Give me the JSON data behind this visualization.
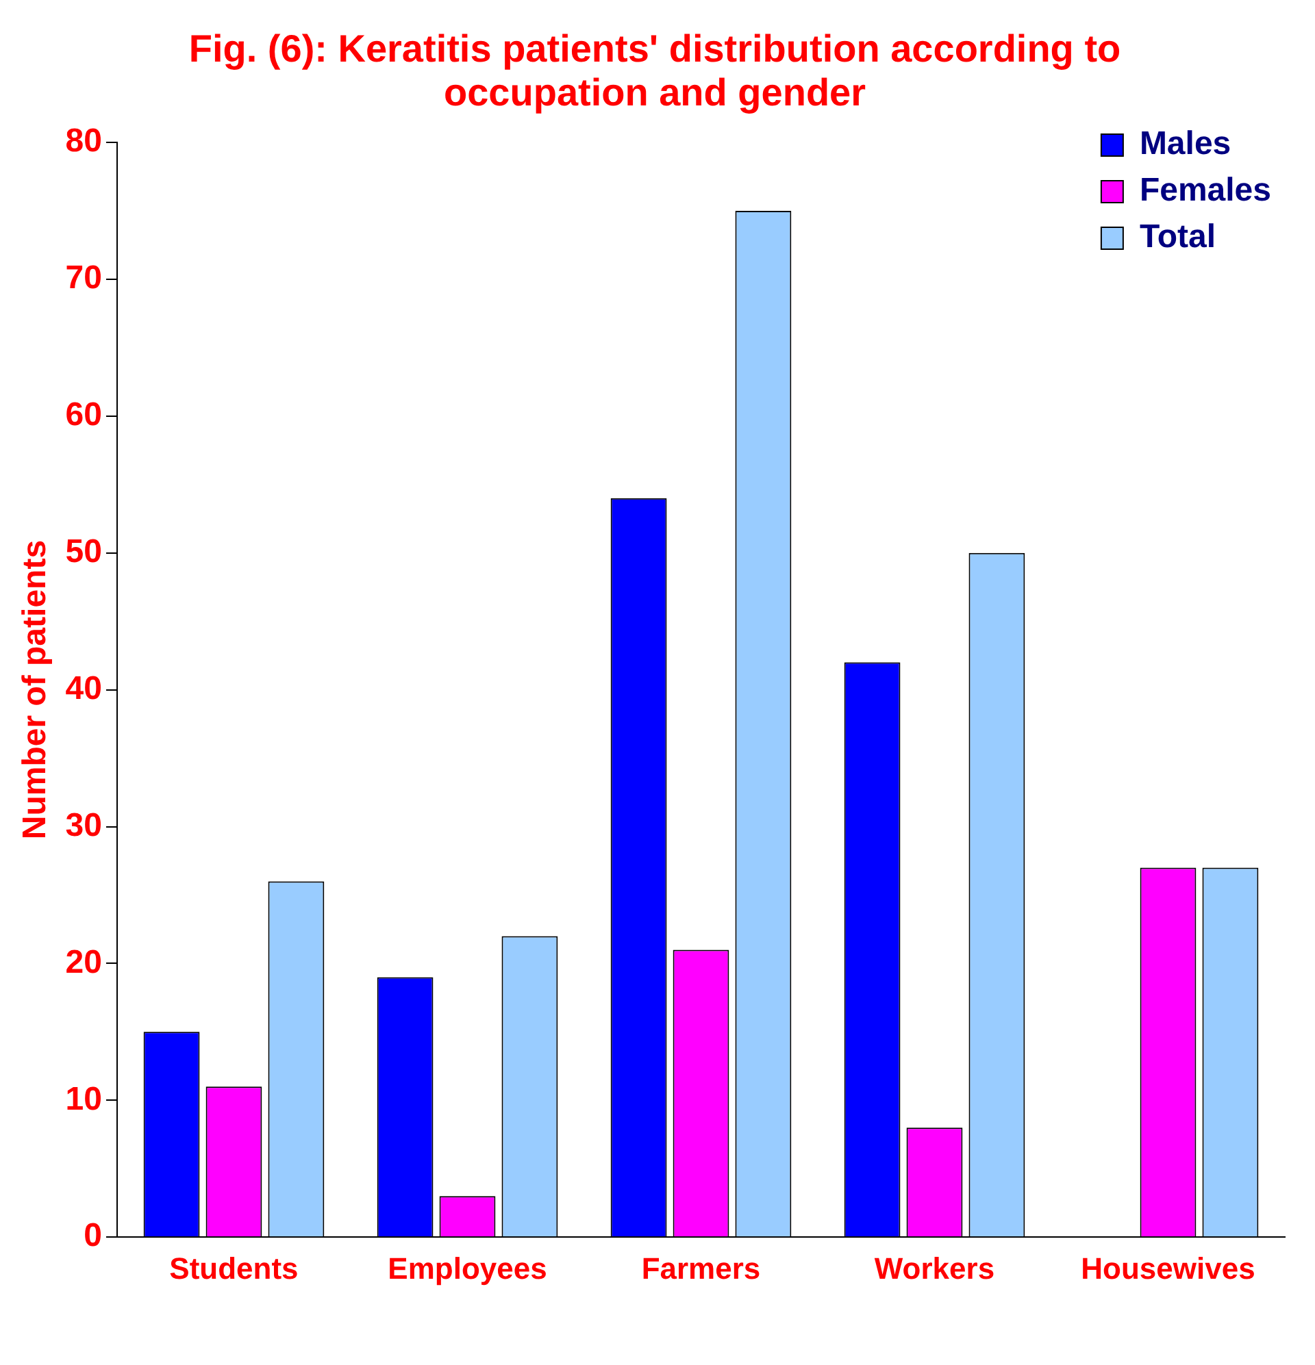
{
  "chart_data": {
    "type": "bar",
    "title": "Fig. (6): Keratitis patients' distribution according to occupation and gender",
    "ylabel": "Number of patients",
    "categories": [
      "Students",
      "Employees",
      "Farmers",
      "Workers",
      "Housewives"
    ],
    "series": [
      {
        "name": "Males",
        "color": "#0000ff",
        "values": [
          15,
          19,
          54,
          42,
          0
        ]
      },
      {
        "name": "Females",
        "color": "#ff00ff",
        "values": [
          11,
          3,
          21,
          8,
          27
        ]
      },
      {
        "name": "Total",
        "color": "#99ccff",
        "values": [
          26,
          22,
          75,
          50,
          27
        ]
      }
    ],
    "ylim": [
      0,
      80
    ],
    "yticks": [
      0,
      10,
      20,
      30,
      40,
      50,
      60,
      70,
      80
    ],
    "grid": false,
    "legend": "top right"
  }
}
